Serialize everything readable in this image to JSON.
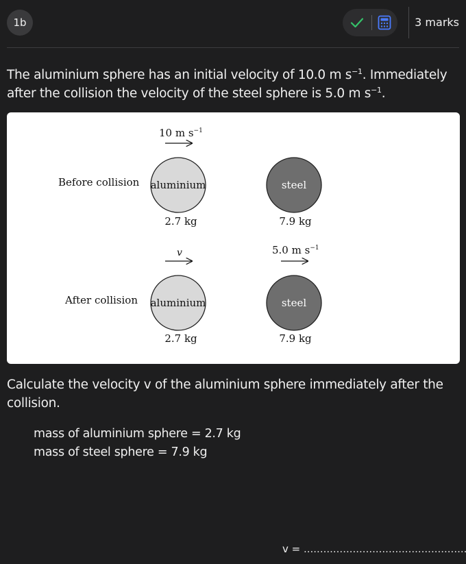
{
  "header": {
    "question_number": "1b",
    "marks_label": "3 marks",
    "icons": {
      "check": "check-icon",
      "calculator": "calculator-icon"
    },
    "colors": {
      "check": "#35c46a",
      "calculator": "#4a7bff"
    }
  },
  "intro": {
    "text_part1": "The aluminium sphere has an initial velocity of 10.0 m s",
    "sup1": "−1",
    "text_part2": ". Immediately after the collision the velocity of the steel sphere is 5.0 m s",
    "sup2": "−1",
    "text_part3": "."
  },
  "figure": {
    "before": {
      "row_label": "Before collision",
      "velocity_base": "10 m s",
      "velocity_sup": "−1",
      "aluminium": {
        "label": "aluminium",
        "mass": "2.7 kg",
        "fill": "#d9d9d9"
      },
      "steel": {
        "label": "steel",
        "mass": "7.9 kg",
        "fill": "#6e6e6e"
      }
    },
    "after": {
      "row_label": "After collision",
      "aluminium_velocity": "v",
      "steel_velocity_base": "5.0 m s",
      "steel_velocity_sup": "−1",
      "aluminium": {
        "label": "aluminium",
        "mass": "2.7 kg",
        "fill": "#d9d9d9"
      },
      "steel": {
        "label": "steel",
        "mass": "7.9 kg",
        "fill": "#6e6e6e"
      }
    }
  },
  "task": {
    "text": "Calculate the velocity v of the aluminium sphere immediately after the collision."
  },
  "given": {
    "line1": "mass of aluminium sphere = 2.7 kg",
    "line2": "mass of steel sphere = 7.9 kg"
  },
  "answer": {
    "label": "v = ",
    "dots": "........................................................"
  }
}
